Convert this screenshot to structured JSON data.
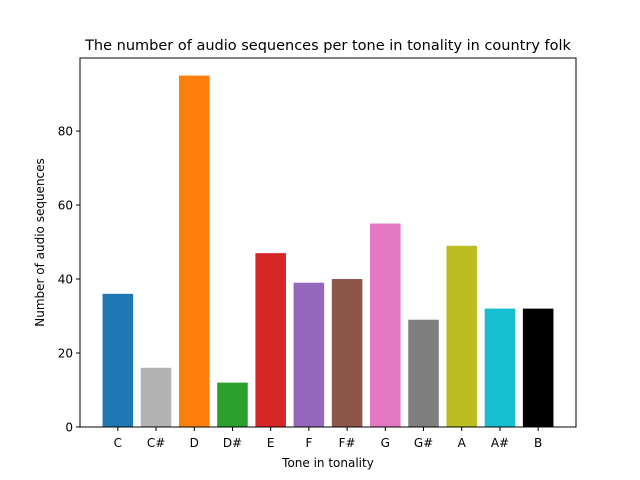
{
  "chart_data": {
    "type": "bar",
    "title": "The number of audio sequences per tone in tonality in country folk",
    "xlabel": "Tone in tonality",
    "ylabel": "Number of audio sequences",
    "categories": [
      "C",
      "C#",
      "D",
      "D#",
      "E",
      "F",
      "F#",
      "G",
      "G#",
      "A",
      "A#",
      "B"
    ],
    "values": [
      36,
      16,
      95,
      12,
      47,
      39,
      40,
      55,
      29,
      49,
      32,
      32
    ],
    "colors": [
      "#1f77b4",
      "#b3b3b3",
      "#ff7f0e",
      "#2ca02c",
      "#d62728",
      "#9467bd",
      "#8c564b",
      "#e377c2",
      "#7f7f7f",
      "#bcbd22",
      "#17becf",
      "#000000"
    ],
    "ylim": [
      0,
      99.75
    ],
    "yticks": [
      0,
      20,
      40,
      60,
      80
    ],
    "grid": false,
    "legend": "none"
  }
}
